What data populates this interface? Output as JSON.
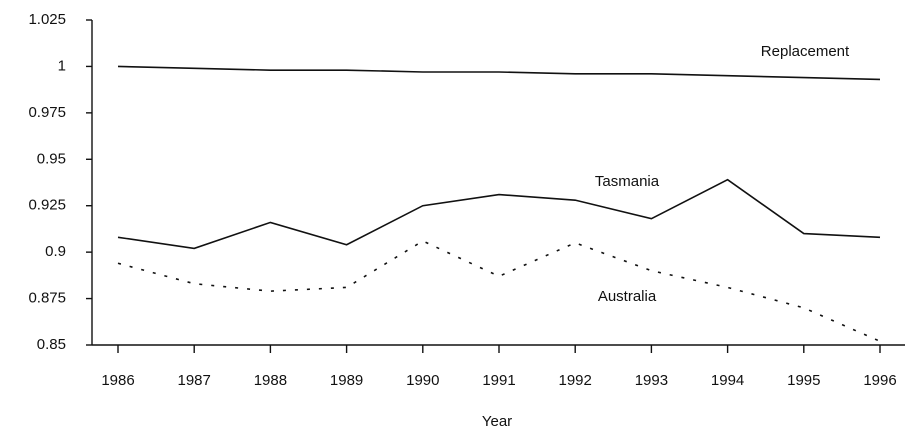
{
  "chart_data": {
    "type": "line",
    "x_label": "Year",
    "categories": [
      "1986",
      "1987",
      "1988",
      "1989",
      "1990",
      "1991",
      "1992",
      "1993",
      "1994",
      "1995",
      "1996"
    ],
    "series": [
      {
        "name": "Replacement",
        "color": "#111111",
        "style": "solid",
        "values": [
          1.0,
          0.999,
          0.998,
          0.998,
          0.997,
          0.997,
          0.996,
          0.996,
          0.995,
          0.994,
          0.993
        ]
      },
      {
        "name": "Tasmania",
        "color": "#111111",
        "style": "solid",
        "values": [
          0.908,
          0.902,
          0.916,
          0.904,
          0.925,
          0.931,
          0.928,
          0.918,
          0.939,
          0.91,
          0.908
        ]
      },
      {
        "name": "Australia",
        "color": "#111111",
        "style": "dotted",
        "values": [
          0.894,
          0.883,
          0.879,
          0.881,
          0.906,
          0.887,
          0.905,
          0.89,
          0.881,
          0.87,
          0.852
        ]
      }
    ],
    "ylim": [
      0.85,
      1.025
    ],
    "yticks": [
      0.85,
      0.875,
      0.9,
      0.925,
      0.95,
      0.975,
      1,
      1.025
    ],
    "grid": false
  }
}
